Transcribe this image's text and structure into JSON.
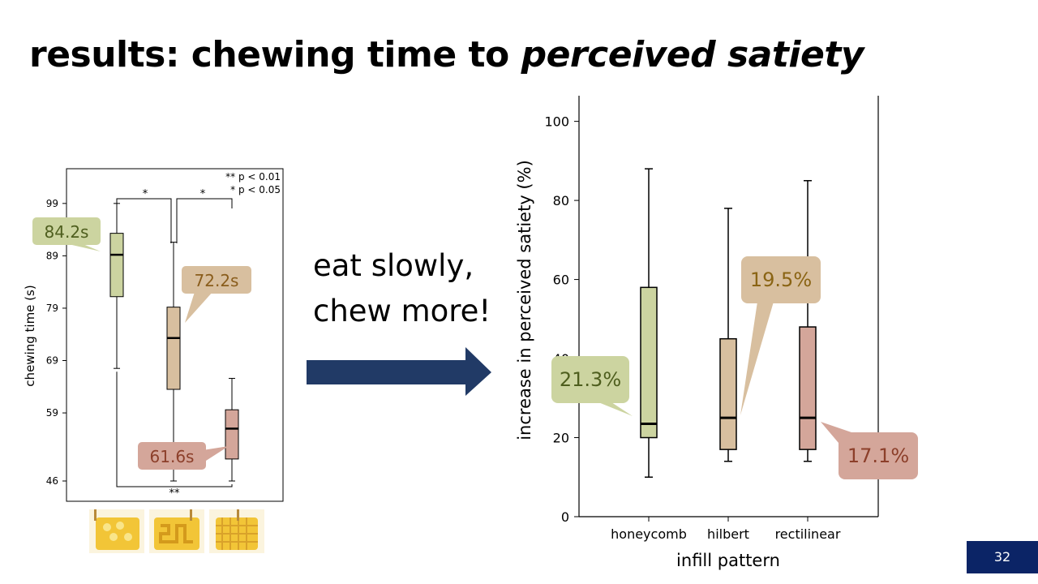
{
  "slide": {
    "title_main": "results: chewing time to ",
    "title_italic": "perceived satiety",
    "slogan_line1": "eat slowly,",
    "slogan_line2": "chew more!",
    "page_number": "32"
  },
  "chart_data": [
    {
      "type": "box",
      "ylabel": "chewing time (s)",
      "xlabel": "",
      "ylim": [
        46,
        103
      ],
      "yticks": [
        46,
        59,
        69,
        79,
        89,
        99
      ],
      "yticklabels": [
        "46",
        "59",
        "69",
        "79",
        "89",
        "99"
      ],
      "legend_lines": [
        "** p < 0.01",
        "* p < 0.05"
      ],
      "boxes": [
        {
          "min": 67.5,
          "q1": 81.2,
          "median": 89.2,
          "q3": 93.3,
          "max": 99.0,
          "color": "#ccd4a0"
        },
        {
          "min": 46.0,
          "q1": 63.5,
          "median": 73.3,
          "q3": 79.2,
          "max": 91.6,
          "color": "#d8bf9f"
        },
        {
          "min": 46.0,
          "q1": 50.2,
          "median": 56.0,
          "q3": 59.6,
          "max": 65.6,
          "color": "#d4a69a"
        }
      ],
      "significance": [
        {
          "from": 0,
          "to": 1,
          "label": "*",
          "level": 99.5
        },
        {
          "from": 1,
          "to": 2,
          "label": "*",
          "level": 99.5
        },
        {
          "from": 0,
          "to": 2,
          "label": "**",
          "level": 45.0
        }
      ],
      "callouts": [
        {
          "text": "84.2s",
          "bg": "#ccd4a0",
          "color": "#4e5e1e"
        },
        {
          "text": "72.2s",
          "bg": "#d8bf9f",
          "color": "#8a5d1c"
        },
        {
          "text": "61.6s",
          "bg": "#d4a69a",
          "color": "#8c3f2a"
        }
      ]
    },
    {
      "type": "box",
      "xlabel": "infill pattern",
      "ylabel": "increase in perceived satiety (%)",
      "ylim": [
        0,
        103
      ],
      "yticks": [
        0,
        20,
        40,
        60,
        80,
        100
      ],
      "yticklabels": [
        "0",
        "20",
        "40",
        "60",
        "80",
        "100"
      ],
      "categories": [
        "honeycomb",
        "hilbert",
        "rectilinear"
      ],
      "boxes": [
        {
          "min": 10,
          "q1": 20,
          "median": 23.5,
          "q3": 58,
          "max": 88,
          "color": "#ccd4a0"
        },
        {
          "min": 14,
          "q1": 17,
          "median": 25,
          "q3": 45,
          "max": 78,
          "color": "#d8bf9f"
        },
        {
          "min": 14,
          "q1": 17,
          "median": 25,
          "q3": 48,
          "max": 85,
          "color": "#d4a69a"
        }
      ],
      "callouts": [
        {
          "text": "21.3%",
          "bg": "#ccd4a0",
          "color": "#4e5e1e"
        },
        {
          "text": "19.5%",
          "bg": "#d8bf9f",
          "color": "#8a6414"
        },
        {
          "text": "17.1%",
          "bg": "#d4a69a",
          "color": "#8c3f2a"
        }
      ]
    }
  ],
  "colors": {
    "arrow": "#213a66",
    "page_badge": "#0b2466"
  }
}
